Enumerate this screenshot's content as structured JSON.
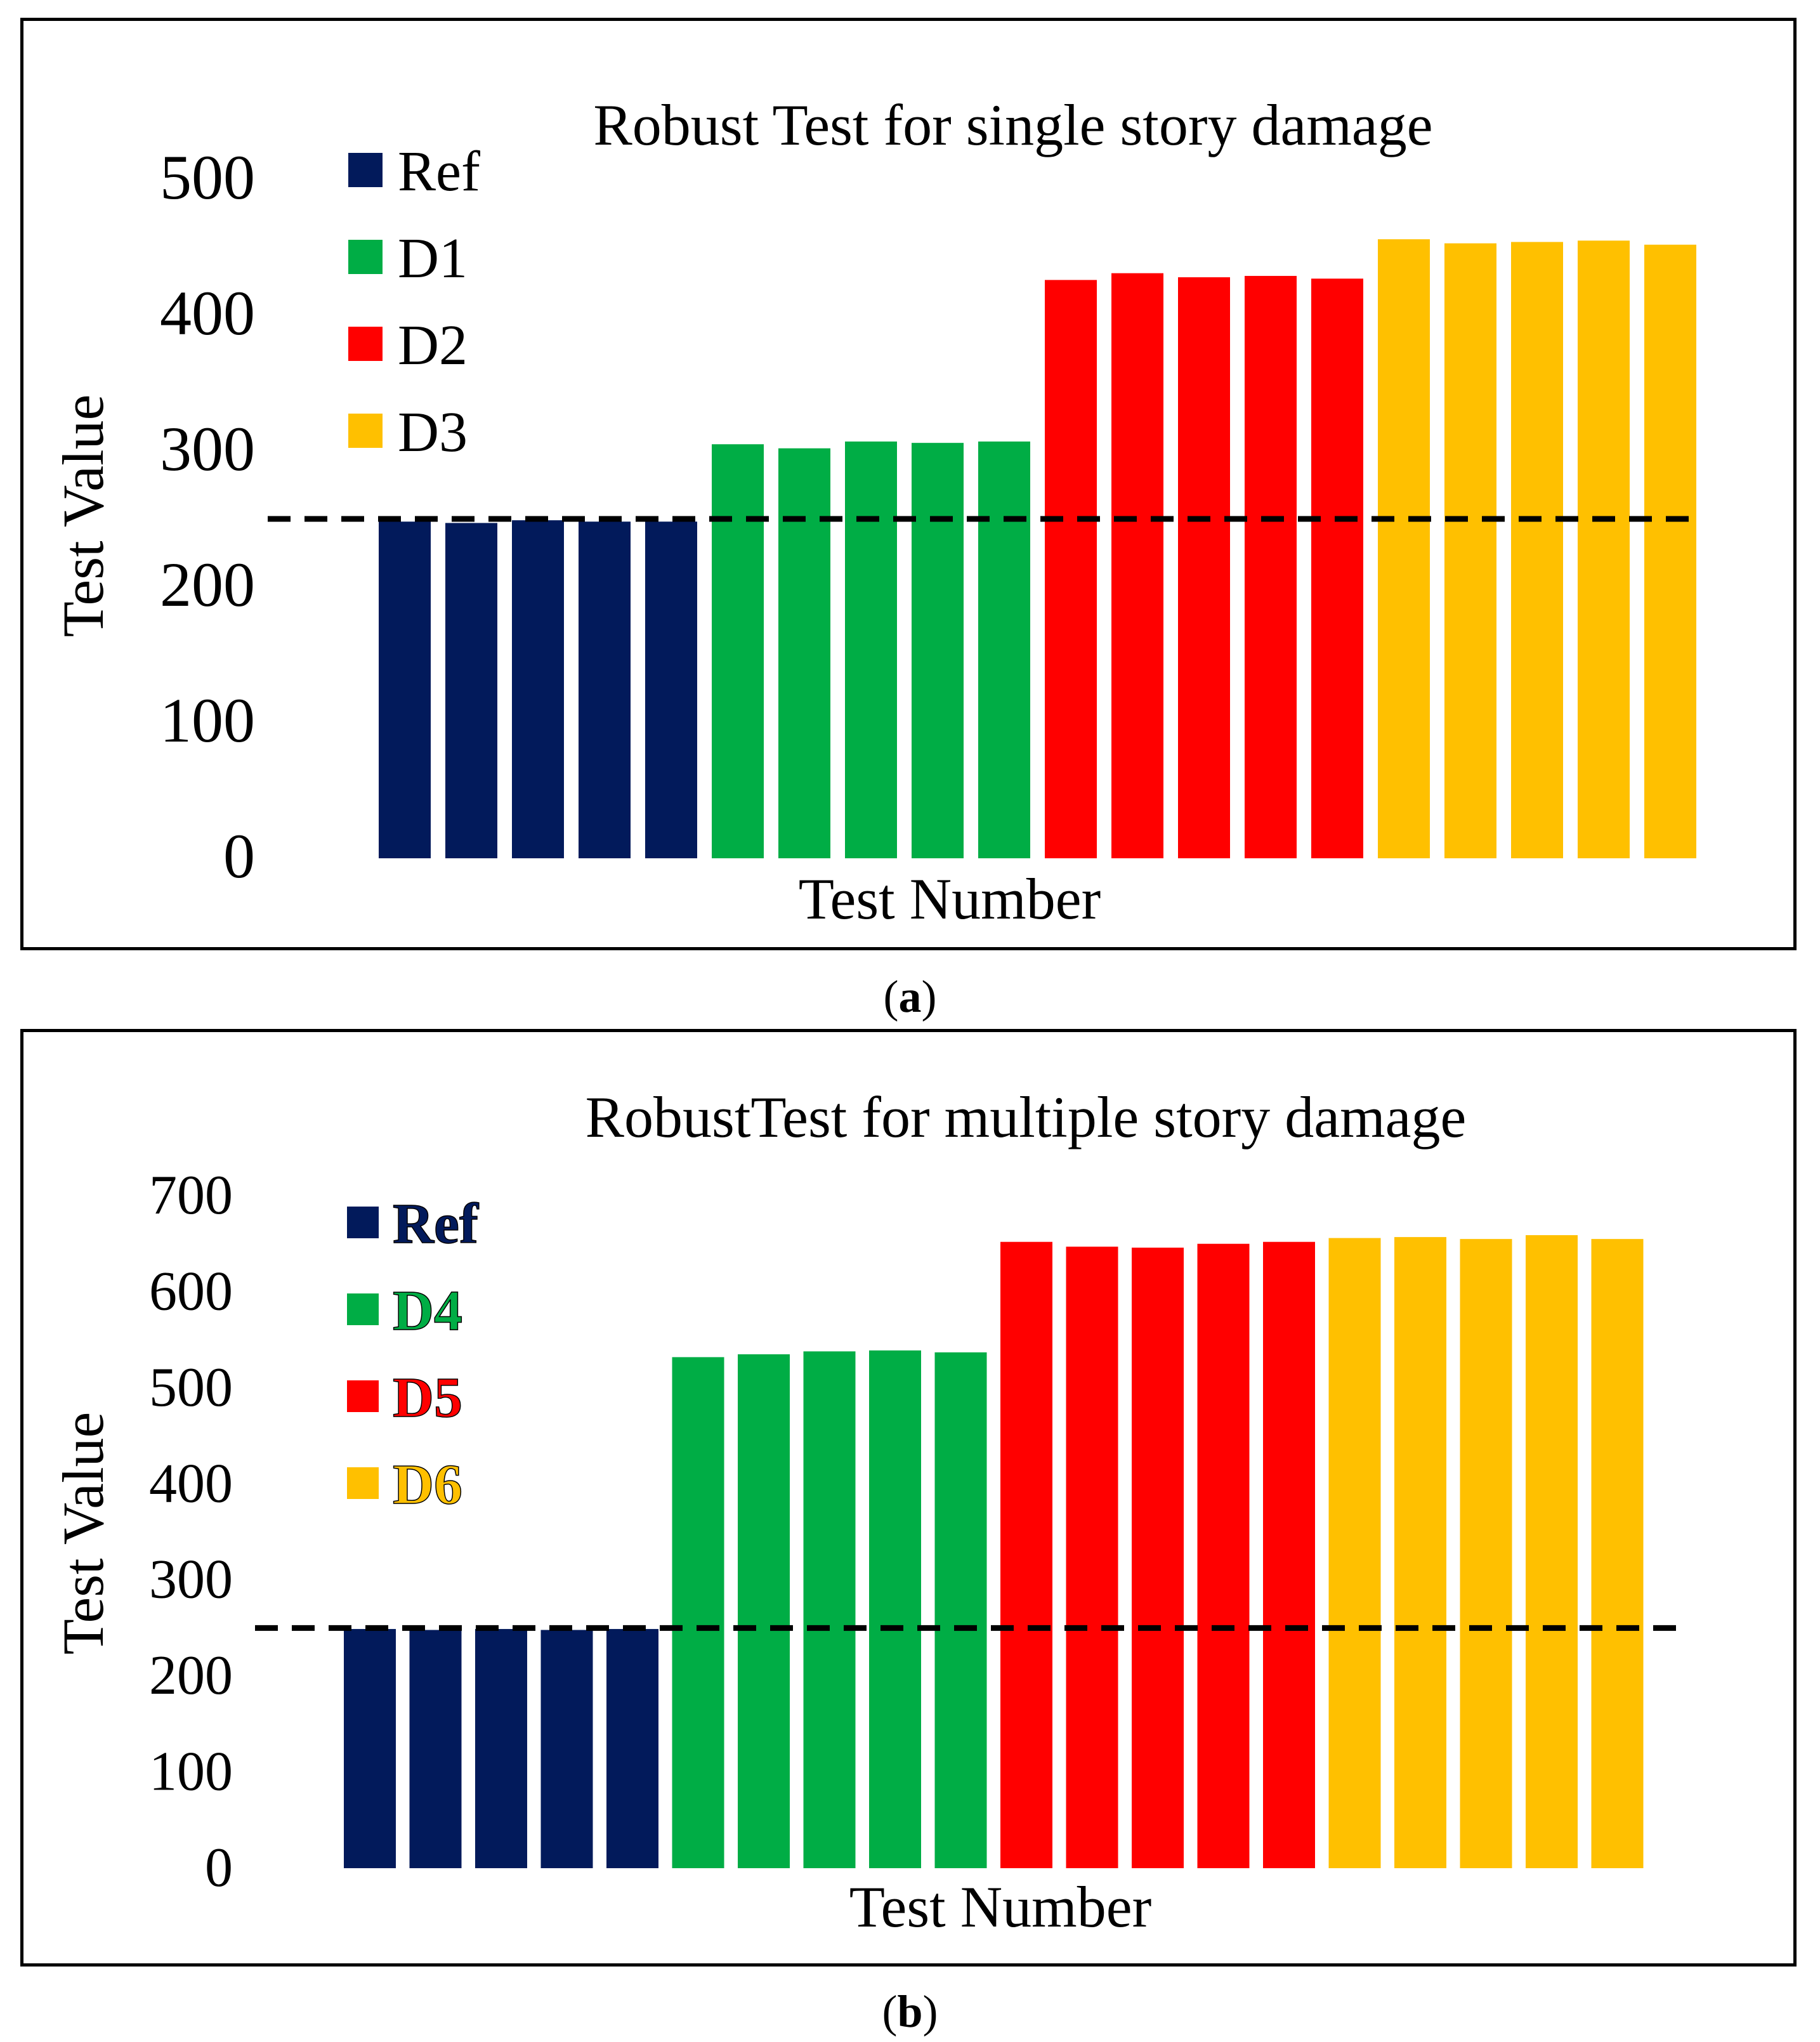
{
  "chart_data": [
    {
      "id": "a",
      "type": "bar",
      "title": "Robust Test for single story damage",
      "xlabel": "Test Number",
      "ylabel": "Test Value",
      "ylim": [
        0,
        500
      ],
      "yticks": [
        "0",
        "100",
        "200",
        "300",
        "400",
        "500"
      ],
      "threshold": 250,
      "legend_position": "top-left",
      "series": [
        {
          "name": "Ref",
          "color": "#021a5b",
          "values": [
            248,
            247,
            249,
            248,
            248
          ]
        },
        {
          "name": "D1",
          "color": "#00ad45",
          "values": [
            305,
            302,
            307,
            306,
            307
          ]
        },
        {
          "name": "D2",
          "color": "#ff0000",
          "values": [
            426,
            431,
            428,
            429,
            427
          ]
        },
        {
          "name": "D3",
          "color": "#ffc000",
          "values": [
            456,
            453,
            454,
            455,
            452
          ]
        }
      ]
    },
    {
      "id": "b",
      "type": "bar",
      "title": "RobustTest for multiple story damage",
      "xlabel": "Test Number",
      "ylabel": "Test Value",
      "ylim": [
        0,
        700
      ],
      "yticks": [
        "0",
        "100",
        "200",
        "300",
        "400",
        "500",
        "600",
        "700"
      ],
      "threshold": 250,
      "legend_position": "top-left",
      "series": [
        {
          "name": "Ref",
          "color": "#021a5b",
          "values": [
            249,
            248,
            249,
            248,
            249
          ]
        },
        {
          "name": "D4",
          "color": "#00ad45",
          "values": [
            532,
            535,
            538,
            539,
            537
          ]
        },
        {
          "name": "D5",
          "color": "#ff0000",
          "values": [
            652,
            647,
            646,
            650,
            652
          ]
        },
        {
          "name": "D6",
          "color": "#ffc000",
          "values": [
            656,
            657,
            655,
            659,
            655
          ]
        }
      ]
    }
  ],
  "captions": [
    {
      "open": "(",
      "letter": "a",
      "close": ")"
    },
    {
      "open": "(",
      "letter": "b",
      "close": ")"
    }
  ]
}
